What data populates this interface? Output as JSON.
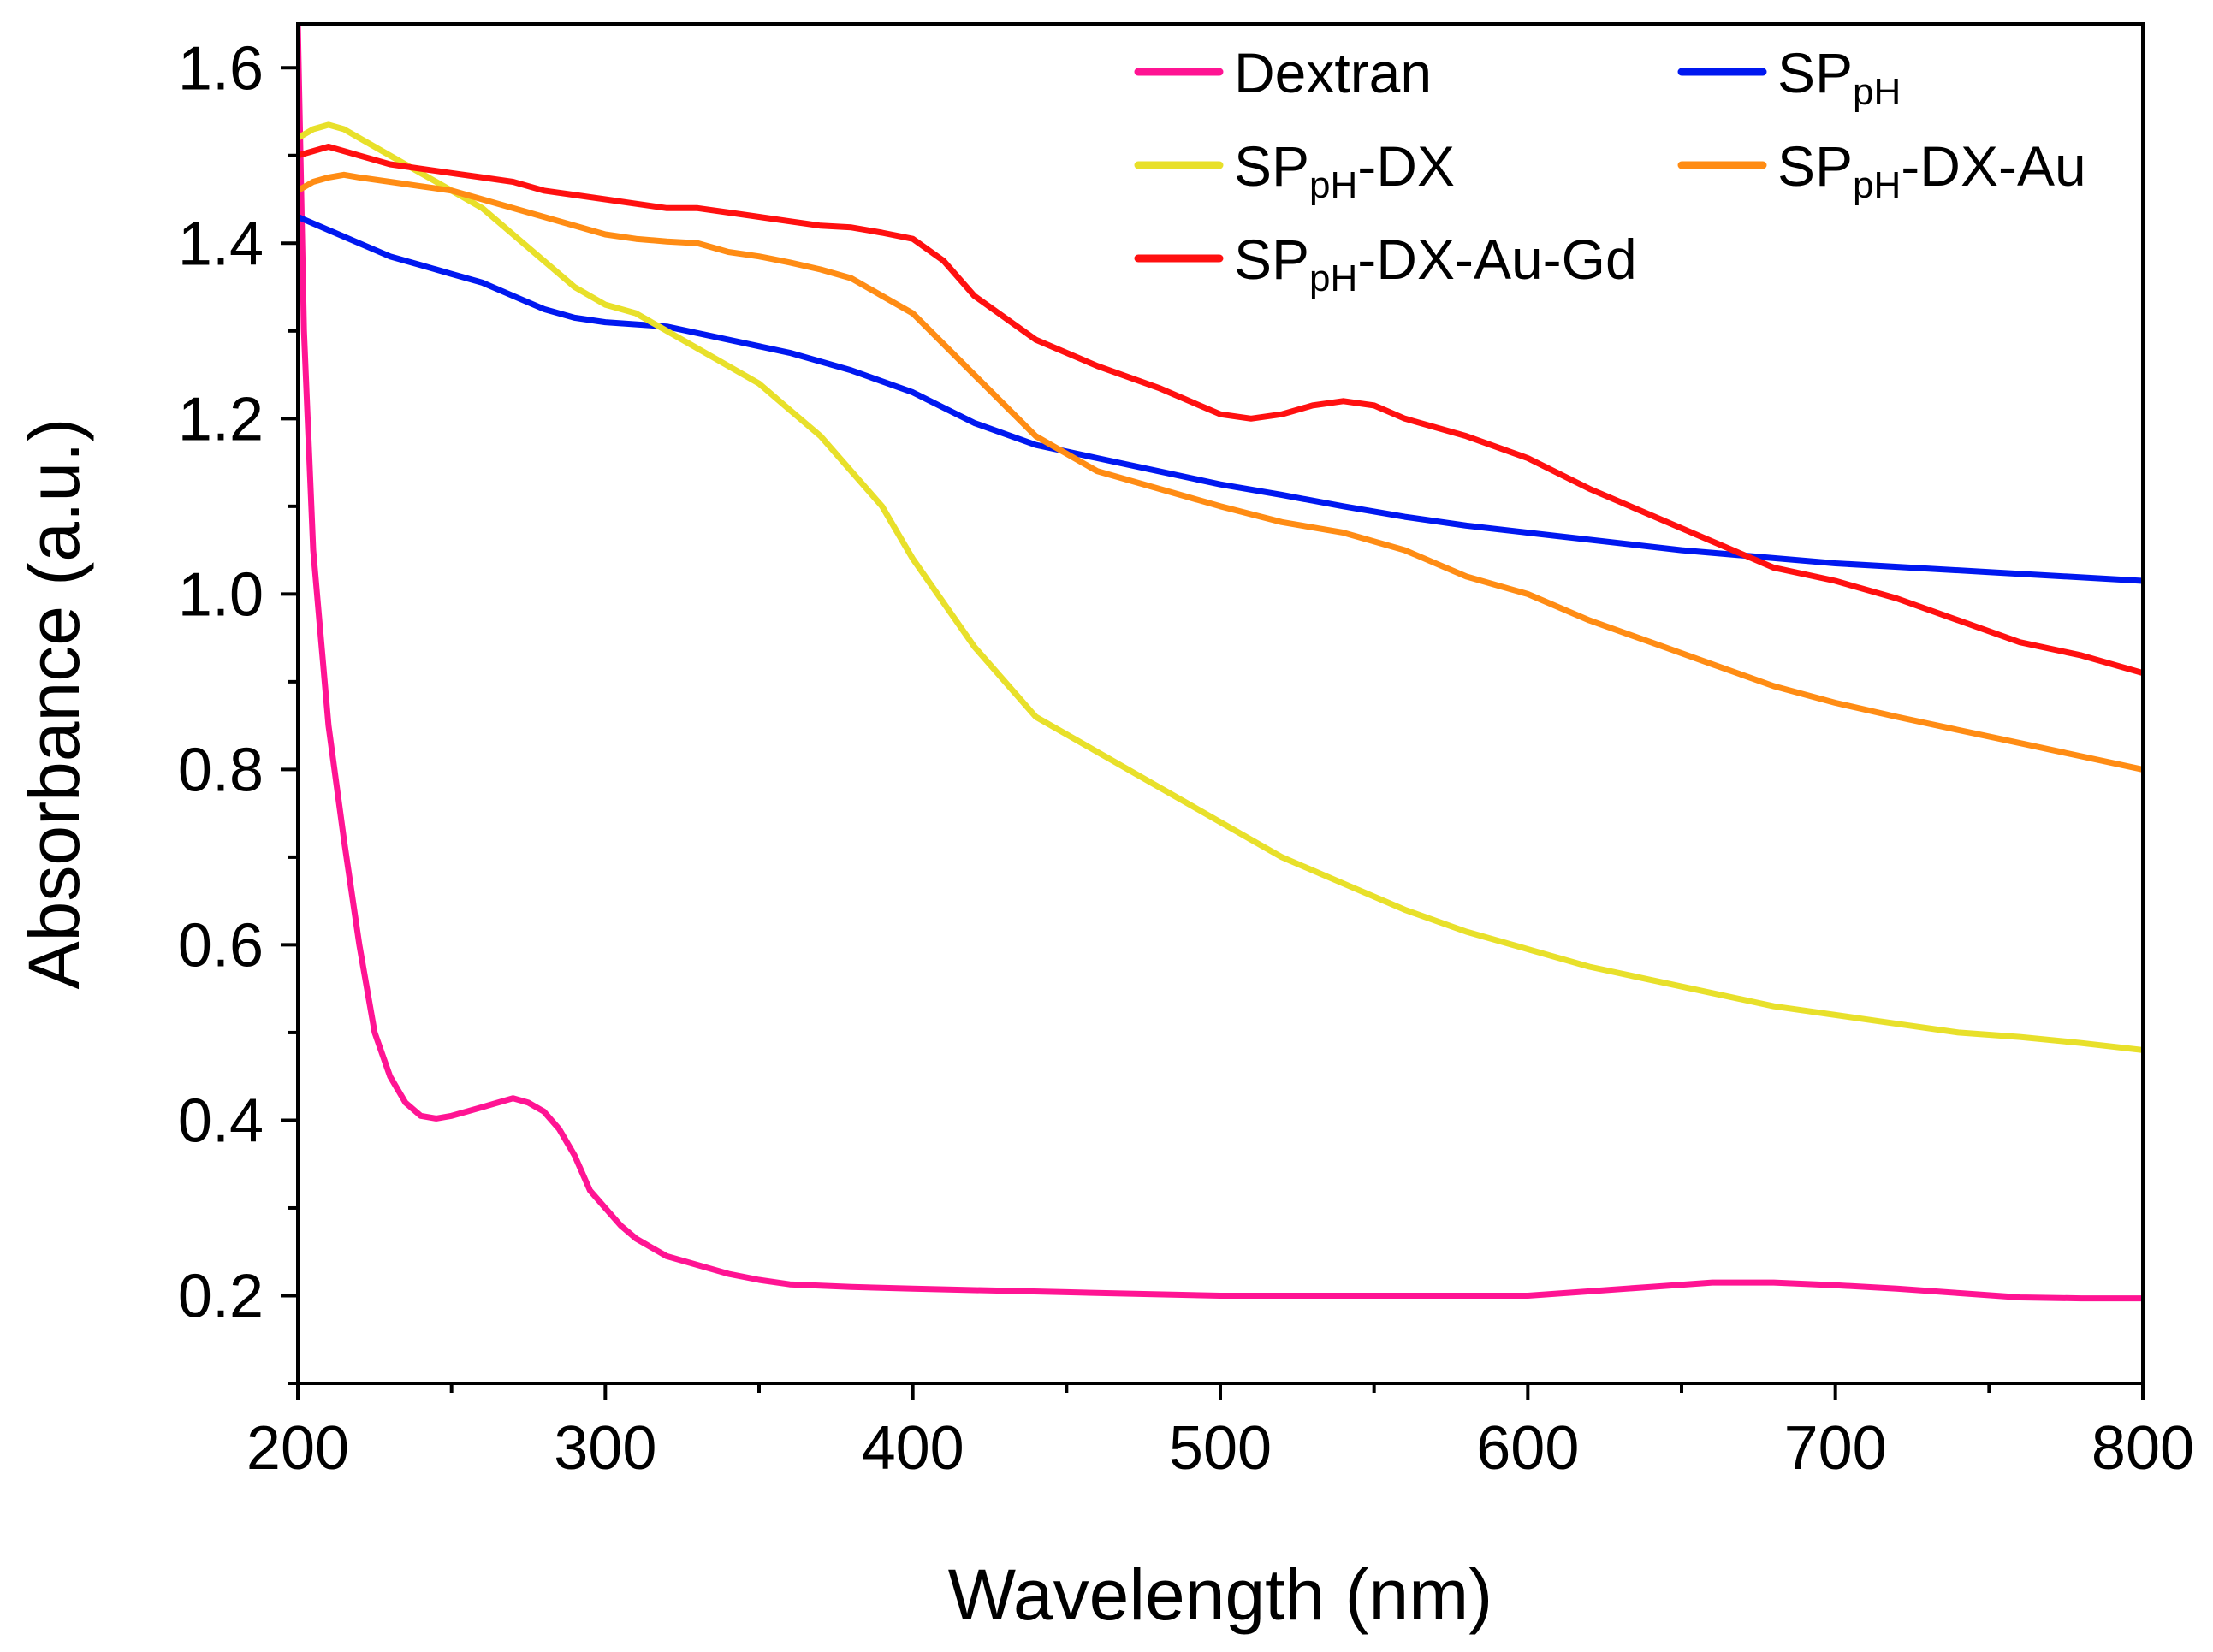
{
  "chart_data": {
    "type": "line",
    "title": "",
    "xlabel": "Wavelength (nm)",
    "ylabel": "Absorbance (a.u.)",
    "xlim": [
      200,
      800
    ],
    "ylim": [
      0.1,
      1.65
    ],
    "x_ticks": [
      200,
      300,
      400,
      500,
      600,
      700,
      800
    ],
    "x_tick_labels": [
      "200",
      "300",
      "400",
      "500",
      "600",
      "700",
      "800"
    ],
    "y_ticks": [
      0.2,
      0.4,
      0.6,
      0.8,
      1.0,
      1.2,
      1.4,
      1.6
    ],
    "y_tick_labels": [
      "0.2",
      "0.4",
      "0.6",
      "0.8",
      "1.0",
      "1.2",
      "1.4",
      "1.6"
    ],
    "grid": false,
    "legend_position": "top-right",
    "series": [
      {
        "name": "Dextran",
        "label_main": "Dextran",
        "label_sub": "",
        "label_rest": "",
        "color": "#ff1493",
        "x": [
          200,
          202,
          205,
          210,
          215,
          220,
          225,
          230,
          235,
          240,
          245,
          250,
          255,
          260,
          265,
          270,
          275,
          280,
          285,
          290,
          295,
          300,
          305,
          310,
          315,
          320,
          330,
          340,
          350,
          360,
          380,
          400,
          450,
          500,
          550,
          600,
          620,
          640,
          660,
          680,
          700,
          720,
          740,
          760,
          780,
          800
        ],
        "y": [
          1.65,
          1.3,
          1.05,
          0.85,
          0.72,
          0.6,
          0.5,
          0.45,
          0.42,
          0.405,
          0.402,
          0.405,
          0.41,
          0.415,
          0.42,
          0.425,
          0.42,
          0.41,
          0.39,
          0.36,
          0.32,
          0.3,
          0.28,
          0.265,
          0.255,
          0.245,
          0.235,
          0.225,
          0.218,
          0.213,
          0.21,
          0.208,
          0.204,
          0.2,
          0.2,
          0.2,
          0.205,
          0.21,
          0.215,
          0.215,
          0.212,
          0.208,
          0.203,
          0.198,
          0.197,
          0.197
        ]
      },
      {
        "name": "SPpH",
        "label_main": "SP",
        "label_sub": "pH",
        "label_rest": "",
        "color": "#0018f0",
        "x": [
          200,
          210,
          220,
          230,
          240,
          250,
          260,
          270,
          280,
          290,
          300,
          320,
          340,
          360,
          380,
          400,
          420,
          440,
          460,
          480,
          500,
          520,
          540,
          560,
          580,
          600,
          650,
          700,
          750,
          800
        ],
        "y": [
          1.43,
          1.415,
          1.4,
          1.385,
          1.375,
          1.365,
          1.355,
          1.34,
          1.325,
          1.315,
          1.31,
          1.305,
          1.29,
          1.275,
          1.255,
          1.23,
          1.195,
          1.17,
          1.155,
          1.14,
          1.125,
          1.113,
          1.1,
          1.088,
          1.078,
          1.07,
          1.05,
          1.035,
          1.025,
          1.015
        ]
      },
      {
        "name": "SPpH-DX",
        "label_main": "SP",
        "label_sub": "pH",
        "label_rest": "-DX",
        "color": "#e8e02a",
        "x": [
          200,
          205,
          210,
          215,
          220,
          230,
          240,
          250,
          260,
          270,
          280,
          290,
          300,
          310,
          320,
          330,
          340,
          350,
          360,
          370,
          380,
          390,
          400,
          420,
          440,
          460,
          480,
          500,
          520,
          540,
          560,
          580,
          600,
          620,
          640,
          660,
          680,
          700,
          720,
          740,
          760,
          780,
          800
        ],
        "y": [
          1.52,
          1.53,
          1.535,
          1.53,
          1.52,
          1.5,
          1.48,
          1.46,
          1.44,
          1.41,
          1.38,
          1.35,
          1.33,
          1.32,
          1.3,
          1.28,
          1.26,
          1.24,
          1.21,
          1.18,
          1.14,
          1.1,
          1.04,
          0.94,
          0.86,
          0.82,
          0.78,
          0.74,
          0.7,
          0.67,
          0.64,
          0.615,
          0.595,
          0.575,
          0.56,
          0.545,
          0.53,
          0.52,
          0.51,
          0.5,
          0.495,
          0.488,
          0.48
        ]
      },
      {
        "name": "SPpH-DX-Au",
        "label_main": "SP",
        "label_sub": "pH",
        "label_rest": "-DX-Au",
        "color": "#ff8c14",
        "x": [
          200,
          205,
          210,
          215,
          220,
          230,
          240,
          250,
          260,
          270,
          280,
          290,
          300,
          310,
          320,
          330,
          340,
          350,
          360,
          370,
          380,
          390,
          400,
          420,
          440,
          460,
          480,
          500,
          520,
          540,
          560,
          580,
          600,
          620,
          640,
          660,
          680,
          700,
          720,
          740,
          760,
          780,
          800
        ],
        "y": [
          1.46,
          1.47,
          1.475,
          1.478,
          1.475,
          1.47,
          1.465,
          1.46,
          1.45,
          1.44,
          1.43,
          1.42,
          1.41,
          1.405,
          1.402,
          1.4,
          1.39,
          1.385,
          1.378,
          1.37,
          1.36,
          1.34,
          1.32,
          1.25,
          1.18,
          1.14,
          1.12,
          1.1,
          1.082,
          1.07,
          1.05,
          1.02,
          1.0,
          0.97,
          0.945,
          0.92,
          0.895,
          0.876,
          0.86,
          0.845,
          0.83,
          0.815,
          0.8
        ]
      },
      {
        "name": "SPpH-DX-Au-Gd",
        "label_main": "SP",
        "label_sub": "pH",
        "label_rest": "-DX-Au-Gd",
        "color": "#ff1010",
        "x": [
          200,
          205,
          210,
          215,
          220,
          230,
          240,
          250,
          260,
          270,
          280,
          290,
          300,
          310,
          320,
          330,
          340,
          350,
          360,
          370,
          380,
          390,
          400,
          410,
          420,
          440,
          460,
          480,
          500,
          510,
          520,
          530,
          540,
          550,
          560,
          580,
          600,
          620,
          640,
          660,
          680,
          700,
          720,
          740,
          760,
          780,
          800
        ],
        "y": [
          1.5,
          1.505,
          1.51,
          1.505,
          1.5,
          1.49,
          1.485,
          1.48,
          1.475,
          1.47,
          1.46,
          1.455,
          1.45,
          1.445,
          1.44,
          1.44,
          1.435,
          1.43,
          1.425,
          1.42,
          1.418,
          1.412,
          1.405,
          1.38,
          1.34,
          1.29,
          1.26,
          1.235,
          1.205,
          1.2,
          1.205,
          1.215,
          1.22,
          1.215,
          1.2,
          1.18,
          1.155,
          1.12,
          1.09,
          1.06,
          1.03,
          1.015,
          0.995,
          0.97,
          0.945,
          0.93,
          0.91
        ]
      }
    ]
  }
}
